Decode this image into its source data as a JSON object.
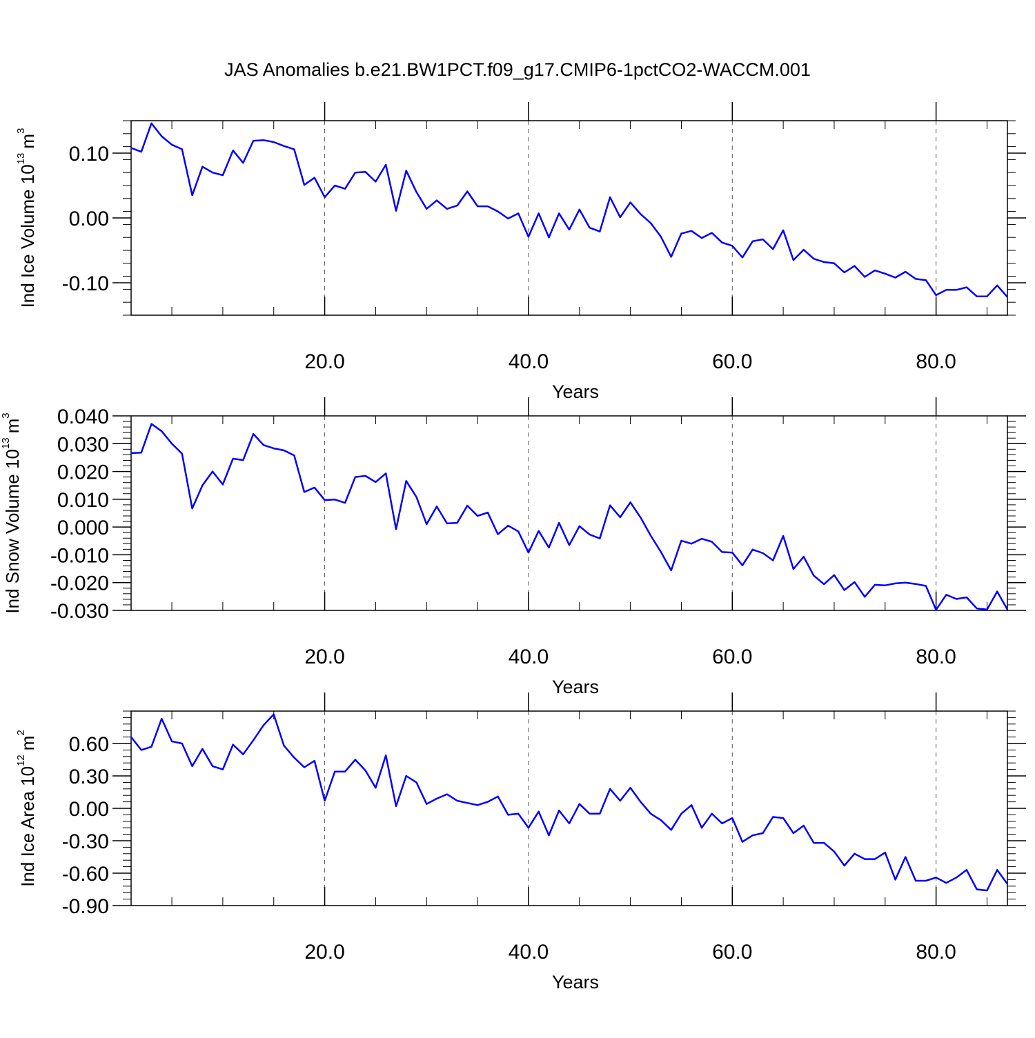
{
  "title": "JAS Anomalies b.e21.BW1PCT.f09_g17.CMIP6-1pctCO2-WACCM.001",
  "chart_data": [
    {
      "type": "line",
      "ylabel": "Ind Ice Volume 10",
      "ylabel_exp": "13",
      "ylabel_unit": "m",
      "ylabel_unit_exp": "3",
      "xlabel": "Years",
      "xlim": [
        1,
        87
      ],
      "ylim": [
        -0.15,
        0.15
      ],
      "xticks": [
        20,
        40,
        60,
        80
      ],
      "xtick_labels": [
        "20.0",
        "40.0",
        "60.0",
        "80.0"
      ],
      "yticks": [
        0.1,
        0.0,
        -0.1
      ],
      "ytick_labels": [
        "0.10",
        "0.00",
        "-0.10"
      ],
      "grid": "vertical dashed at x ticks",
      "color": "#0000ff",
      "x": [
        1,
        2,
        3,
        4,
        5,
        6,
        7,
        8,
        9,
        10,
        11,
        12,
        13,
        14,
        15,
        16,
        17,
        18,
        19,
        20,
        21,
        22,
        23,
        24,
        25,
        26,
        27,
        28,
        29,
        30,
        31,
        32,
        33,
        34,
        35,
        36,
        37,
        38,
        39,
        40,
        41,
        42,
        43,
        44,
        45,
        46,
        47,
        48,
        49,
        50,
        51,
        52,
        53,
        54,
        55,
        56,
        57,
        58,
        59,
        60,
        61,
        62,
        63,
        64,
        65,
        66,
        67,
        68,
        69,
        70,
        71,
        72,
        73,
        74,
        75,
        76,
        77,
        78,
        79,
        80,
        81,
        82,
        83,
        84,
        85,
        86,
        87
      ],
      "y": [
        0.108,
        0.102,
        0.146,
        0.126,
        0.113,
        0.106,
        0.035,
        0.079,
        0.07,
        0.066,
        0.104,
        0.085,
        0.119,
        0.12,
        0.117,
        0.111,
        0.106,
        0.051,
        0.062,
        0.032,
        0.05,
        0.045,
        0.07,
        0.071,
        0.056,
        0.082,
        0.011,
        0.073,
        0.04,
        0.014,
        0.027,
        0.014,
        0.019,
        0.041,
        0.018,
        0.018,
        0.01,
        -0.001,
        0.007,
        -0.029,
        0.007,
        -0.03,
        0.007,
        -0.018,
        0.013,
        -0.015,
        -0.021,
        0.032,
        0.001,
        0.024,
        0.006,
        -0.008,
        -0.029,
        -0.06,
        -0.024,
        -0.02,
        -0.031,
        -0.023,
        -0.038,
        -0.043,
        -0.061,
        -0.036,
        -0.033,
        -0.048,
        -0.019,
        -0.065,
        -0.049,
        -0.063,
        -0.068,
        -0.07,
        -0.084,
        -0.074,
        -0.091,
        -0.081,
        -0.086,
        -0.092,
        -0.083,
        -0.094,
        -0.096,
        -0.119,
        -0.111,
        -0.111,
        -0.107,
        -0.121,
        -0.121,
        -0.104,
        -0.122
      ]
    },
    {
      "type": "line",
      "ylabel": "Ind Snow Volume 10",
      "ylabel_exp": "13",
      "ylabel_unit": "m",
      "ylabel_unit_exp": "3",
      "xlabel": "Years",
      "xlim": [
        1,
        87
      ],
      "ylim": [
        -0.03,
        0.04
      ],
      "xticks": [
        20,
        40,
        60,
        80
      ],
      "xtick_labels": [
        "20.0",
        "40.0",
        "60.0",
        "80.0"
      ],
      "yticks": [
        0.04,
        0.03,
        0.02,
        0.01,
        0.0,
        -0.01,
        -0.02,
        -0.03
      ],
      "ytick_labels": [
        "0.040",
        "0.030",
        "0.020",
        "0.010",
        "0.000",
        "-0.010",
        "-0.020",
        "-0.030"
      ],
      "grid": "vertical dashed at x ticks",
      "color": "#0000ff",
      "x": [
        1,
        2,
        3,
        4,
        5,
        6,
        7,
        8,
        9,
        10,
        11,
        12,
        13,
        14,
        15,
        16,
        17,
        18,
        19,
        20,
        21,
        22,
        23,
        24,
        25,
        26,
        27,
        28,
        29,
        30,
        31,
        32,
        33,
        34,
        35,
        36,
        37,
        38,
        39,
        40,
        41,
        42,
        43,
        44,
        45,
        46,
        47,
        48,
        49,
        50,
        51,
        52,
        53,
        54,
        55,
        56,
        57,
        58,
        59,
        60,
        61,
        62,
        63,
        64,
        65,
        66,
        67,
        68,
        69,
        70,
        71,
        72,
        73,
        74,
        75,
        76,
        77,
        78,
        79,
        80,
        81,
        82,
        83,
        84,
        85,
        86,
        87
      ],
      "y": [
        0.0266,
        0.0268,
        0.0371,
        0.0345,
        0.03,
        0.0264,
        0.0067,
        0.015,
        0.02,
        0.0153,
        0.0246,
        0.0241,
        0.0335,
        0.0295,
        0.0283,
        0.0276,
        0.0258,
        0.0126,
        0.0142,
        0.0097,
        0.0099,
        0.0087,
        0.018,
        0.0184,
        0.0162,
        0.0193,
        -0.0008,
        0.0166,
        0.0108,
        0.001,
        0.0074,
        0.0013,
        0.0015,
        0.0077,
        0.004,
        0.0052,
        -0.0026,
        0.0005,
        -0.0016,
        -0.0092,
        -0.0014,
        -0.0074,
        0.0015,
        -0.0065,
        0.0003,
        -0.0027,
        -0.0041,
        0.0078,
        0.0035,
        0.0089,
        0.0034,
        -0.0031,
        -0.009,
        -0.0156,
        -0.0049,
        -0.006,
        -0.0042,
        -0.0053,
        -0.009,
        -0.0092,
        -0.0138,
        -0.0081,
        -0.0094,
        -0.012,
        -0.0032,
        -0.0151,
        -0.0107,
        -0.0175,
        -0.0206,
        -0.0173,
        -0.0227,
        -0.0198,
        -0.0251,
        -0.0208,
        -0.021,
        -0.0203,
        -0.02,
        -0.0205,
        -0.0212,
        -0.0298,
        -0.0244,
        -0.0259,
        -0.0253,
        -0.0293,
        -0.0297,
        -0.0232,
        -0.0297
      ]
    },
    {
      "type": "line",
      "ylabel": "Ind Ice Area 10",
      "ylabel_exp": "12",
      "ylabel_unit": "m",
      "ylabel_unit_exp": "2",
      "xlabel": "Years",
      "xlim": [
        1,
        87
      ],
      "ylim": [
        -0.9,
        0.9
      ],
      "xticks": [
        20,
        40,
        60,
        80
      ],
      "xtick_labels": [
        "20.0",
        "40.0",
        "60.0",
        "80.0"
      ],
      "yticks": [
        0.6,
        0.3,
        0.0,
        -0.3,
        -0.6,
        -0.9
      ],
      "ytick_labels": [
        "0.60",
        "0.30",
        "0.00",
        "-0.30",
        "-0.60",
        "-0.90"
      ],
      "grid": "vertical dashed at x ticks",
      "color": "#0000ff",
      "x": [
        1,
        2,
        3,
        4,
        5,
        6,
        7,
        8,
        9,
        10,
        11,
        12,
        13,
        14,
        15,
        16,
        17,
        18,
        19,
        20,
        21,
        22,
        23,
        24,
        25,
        26,
        27,
        28,
        29,
        30,
        31,
        32,
        33,
        34,
        35,
        36,
        37,
        38,
        39,
        40,
        41,
        42,
        43,
        44,
        45,
        46,
        47,
        48,
        49,
        50,
        51,
        52,
        53,
        54,
        55,
        56,
        57,
        58,
        59,
        60,
        61,
        62,
        63,
        64,
        65,
        66,
        67,
        68,
        69,
        70,
        71,
        72,
        73,
        74,
        75,
        76,
        77,
        78,
        79,
        80,
        81,
        82,
        83,
        84,
        85,
        86,
        87
      ],
      "y": [
        0.66,
        0.54,
        0.57,
        0.83,
        0.62,
        0.6,
        0.39,
        0.55,
        0.39,
        0.36,
        0.59,
        0.5,
        0.63,
        0.77,
        0.87,
        0.58,
        0.47,
        0.38,
        0.44,
        0.07,
        0.34,
        0.34,
        0.45,
        0.35,
        0.19,
        0.49,
        0.02,
        0.3,
        0.24,
        0.04,
        0.09,
        0.13,
        0.07,
        0.05,
        0.03,
        0.06,
        0.11,
        -0.06,
        -0.05,
        -0.18,
        -0.03,
        -0.25,
        -0.02,
        -0.14,
        0.04,
        -0.05,
        -0.05,
        0.18,
        0.07,
        0.19,
        0.06,
        -0.05,
        -0.11,
        -0.2,
        -0.05,
        0.03,
        -0.18,
        -0.05,
        -0.14,
        -0.09,
        -0.31,
        -0.25,
        -0.23,
        -0.08,
        -0.09,
        -0.23,
        -0.16,
        -0.32,
        -0.32,
        -0.4,
        -0.53,
        -0.42,
        -0.47,
        -0.47,
        -0.41,
        -0.66,
        -0.45,
        -0.67,
        -0.67,
        -0.64,
        -0.69,
        -0.64,
        -0.57,
        -0.75,
        -0.76,
        -0.57,
        -0.7
      ]
    }
  ]
}
